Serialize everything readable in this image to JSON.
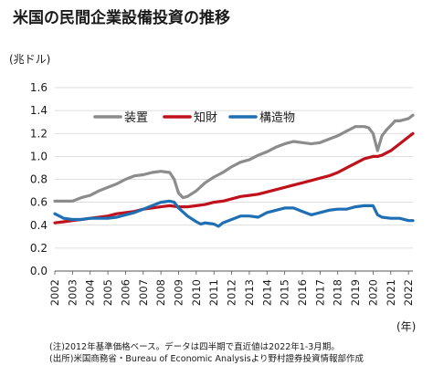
{
  "page": {
    "title": "米国の民間企業設備投資の推移",
    "unit_label": "(兆ドル)",
    "x_unit_label": "(年)",
    "notes": [
      "(注)2012年基準価格ベース。データは四半期で直近値は2022年1-3月期。",
      "(出所)米国商務省・Bureau of Economic Analysisより野村證券投資情報部作成"
    ]
  },
  "chart_data": {
    "type": "line",
    "x_start": 2002,
    "x_end": 2022.25,
    "ylim": [
      0,
      1.6
    ],
    "yticks": [
      0,
      0.2,
      0.4,
      0.6,
      0.8,
      1.0,
      1.2,
      1.4,
      1.6
    ],
    "yticks_labels": [
      "0.0",
      "0.2",
      "0.4",
      "0.6",
      "0.8",
      "1.0",
      "1.2",
      "1.4",
      "1.6"
    ],
    "xticks": [
      2002,
      2003,
      2004,
      2005,
      2006,
      2007,
      2008,
      2009,
      2010,
      2011,
      2012,
      2013,
      2014,
      2015,
      2016,
      2017,
      2018,
      2019,
      2020,
      2021,
      2022
    ],
    "xticks_labels": [
      "2002",
      "2003",
      "2004",
      "2005",
      "2006",
      "2007",
      "2008",
      "2009",
      "2010",
      "2011",
      "2012",
      "2013",
      "2014",
      "2015",
      "2016",
      "2017",
      "2018",
      "2019",
      "2020",
      "2021",
      "2022"
    ],
    "grid": "horizontal",
    "legend_position": "top-left",
    "series": [
      {
        "name": "装置",
        "color": "#8c8c8c",
        "points": [
          [
            2002.0,
            0.61
          ],
          [
            2002.5,
            0.61
          ],
          [
            2003.0,
            0.61
          ],
          [
            2003.5,
            0.64
          ],
          [
            2004.0,
            0.66
          ],
          [
            2004.5,
            0.7
          ],
          [
            2005.0,
            0.73
          ],
          [
            2005.5,
            0.76
          ],
          [
            2006.0,
            0.8
          ],
          [
            2006.5,
            0.83
          ],
          [
            2007.0,
            0.84
          ],
          [
            2007.5,
            0.86
          ],
          [
            2008.0,
            0.87
          ],
          [
            2008.5,
            0.86
          ],
          [
            2008.75,
            0.8
          ],
          [
            2009.0,
            0.68
          ],
          [
            2009.25,
            0.64
          ],
          [
            2009.5,
            0.65
          ],
          [
            2010.0,
            0.7
          ],
          [
            2010.5,
            0.77
          ],
          [
            2011.0,
            0.82
          ],
          [
            2011.5,
            0.86
          ],
          [
            2012.0,
            0.91
          ],
          [
            2012.5,
            0.95
          ],
          [
            2013.0,
            0.97
          ],
          [
            2013.5,
            1.01
          ],
          [
            2014.0,
            1.04
          ],
          [
            2014.5,
            1.08
          ],
          [
            2015.0,
            1.11
          ],
          [
            2015.5,
            1.13
          ],
          [
            2016.0,
            1.12
          ],
          [
            2016.5,
            1.11
          ],
          [
            2017.0,
            1.12
          ],
          [
            2017.5,
            1.15
          ],
          [
            2018.0,
            1.18
          ],
          [
            2018.5,
            1.22
          ],
          [
            2019.0,
            1.26
          ],
          [
            2019.5,
            1.26
          ],
          [
            2019.75,
            1.25
          ],
          [
            2020.0,
            1.2
          ],
          [
            2020.25,
            1.05
          ],
          [
            2020.5,
            1.18
          ],
          [
            2020.75,
            1.23
          ],
          [
            2021.0,
            1.27
          ],
          [
            2021.25,
            1.31
          ],
          [
            2021.5,
            1.31
          ],
          [
            2021.75,
            1.32
          ],
          [
            2022.0,
            1.33
          ],
          [
            2022.25,
            1.36
          ]
        ]
      },
      {
        "name": "知財",
        "color": "#c0121c",
        "points": [
          [
            2002.0,
            0.42
          ],
          [
            2002.5,
            0.43
          ],
          [
            2003.0,
            0.44
          ],
          [
            2003.5,
            0.45
          ],
          [
            2004.0,
            0.46
          ],
          [
            2004.5,
            0.47
          ],
          [
            2005.0,
            0.48
          ],
          [
            2005.5,
            0.5
          ],
          [
            2006.0,
            0.51
          ],
          [
            2006.5,
            0.52
          ],
          [
            2007.0,
            0.54
          ],
          [
            2007.5,
            0.55
          ],
          [
            2008.0,
            0.56
          ],
          [
            2008.5,
            0.57
          ],
          [
            2009.0,
            0.56
          ],
          [
            2009.5,
            0.56
          ],
          [
            2010.0,
            0.57
          ],
          [
            2010.5,
            0.58
          ],
          [
            2011.0,
            0.6
          ],
          [
            2011.5,
            0.61
          ],
          [
            2012.0,
            0.63
          ],
          [
            2012.5,
            0.65
          ],
          [
            2013.0,
            0.66
          ],
          [
            2013.5,
            0.67
          ],
          [
            2014.0,
            0.69
          ],
          [
            2014.5,
            0.71
          ],
          [
            2015.0,
            0.73
          ],
          [
            2015.5,
            0.75
          ],
          [
            2016.0,
            0.77
          ],
          [
            2016.5,
            0.79
          ],
          [
            2017.0,
            0.81
          ],
          [
            2017.5,
            0.83
          ],
          [
            2018.0,
            0.86
          ],
          [
            2018.5,
            0.9
          ],
          [
            2019.0,
            0.94
          ],
          [
            2019.5,
            0.98
          ],
          [
            2020.0,
            1.0
          ],
          [
            2020.25,
            1.0
          ],
          [
            2020.5,
            1.01
          ],
          [
            2021.0,
            1.05
          ],
          [
            2021.5,
            1.11
          ],
          [
            2022.0,
            1.17
          ],
          [
            2022.25,
            1.2
          ]
        ]
      },
      {
        "name": "構造物",
        "color": "#1f6fb5",
        "points": [
          [
            2002.0,
            0.5
          ],
          [
            2002.5,
            0.46
          ],
          [
            2003.0,
            0.45
          ],
          [
            2003.5,
            0.45
          ],
          [
            2004.0,
            0.46
          ],
          [
            2004.5,
            0.46
          ],
          [
            2005.0,
            0.46
          ],
          [
            2005.5,
            0.47
          ],
          [
            2006.0,
            0.49
          ],
          [
            2006.5,
            0.51
          ],
          [
            2007.0,
            0.54
          ],
          [
            2007.5,
            0.57
          ],
          [
            2008.0,
            0.6
          ],
          [
            2008.5,
            0.61
          ],
          [
            2008.75,
            0.6
          ],
          [
            2009.0,
            0.55
          ],
          [
            2009.5,
            0.48
          ],
          [
            2010.0,
            0.43
          ],
          [
            2010.25,
            0.41
          ],
          [
            2010.5,
            0.42
          ],
          [
            2011.0,
            0.41
          ],
          [
            2011.25,
            0.39
          ],
          [
            2011.5,
            0.42
          ],
          [
            2012.0,
            0.45
          ],
          [
            2012.5,
            0.48
          ],
          [
            2013.0,
            0.48
          ],
          [
            2013.5,
            0.47
          ],
          [
            2014.0,
            0.51
          ],
          [
            2014.5,
            0.53
          ],
          [
            2015.0,
            0.55
          ],
          [
            2015.5,
            0.55
          ],
          [
            2016.0,
            0.52
          ],
          [
            2016.5,
            0.49
          ],
          [
            2017.0,
            0.51
          ],
          [
            2017.5,
            0.53
          ],
          [
            2018.0,
            0.54
          ],
          [
            2018.5,
            0.54
          ],
          [
            2019.0,
            0.56
          ],
          [
            2019.5,
            0.57
          ],
          [
            2020.0,
            0.57
          ],
          [
            2020.25,
            0.49
          ],
          [
            2020.5,
            0.47
          ],
          [
            2021.0,
            0.46
          ],
          [
            2021.5,
            0.46
          ],
          [
            2022.0,
            0.44
          ],
          [
            2022.25,
            0.44
          ]
        ]
      }
    ]
  }
}
